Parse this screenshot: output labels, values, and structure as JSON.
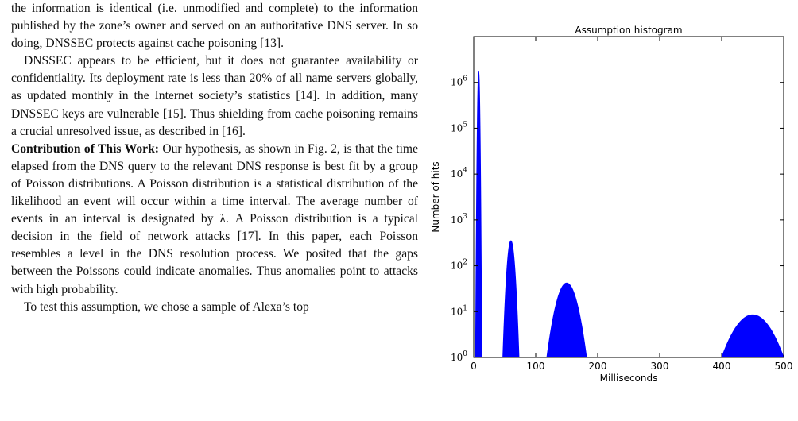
{
  "paper": {
    "paragraphs": [
      {
        "style": "plain",
        "lead": "",
        "text": "the information is identical (i.e. unmodified and complete) to the information published by the zone’s owner and served on an authoritative DNS server. In so doing, DNSSEC protects against cache poisoning [13]."
      },
      {
        "style": "indent",
        "lead": "",
        "text": "DNSSEC appears to be efficient, but it does not guarantee availability or confidentiality. Its deployment rate is less than 20% of all name servers globally, as updated monthly in the Internet society’s statistics [14]. In addition, many DNSSEC keys are vulnerable [15]. Thus shielding from cache poisoning remains a crucial unresolved issue, as described in [16]."
      },
      {
        "style": "plain",
        "lead": "Contribution of This Work:",
        "text": " Our hypothesis, as shown in Fig. 2, is that the time elapsed from the DNS query to the relevant DNS response is best fit by a group of Poisson distributions. A Poisson distribution is a statistical distribution of the likelihood an event will occur within a time interval. The average number of events in an interval is designated by λ. A Poisson distribution is a typical decision in the field of network attacks [17]. In this paper, each Poisson resembles a level in the DNS resolution process. We posited that the gaps between the Poissons could indicate anomalies. Thus anomalies point to attacks with high probability."
      },
      {
        "style": "indent",
        "lead": "",
        "text": "To test this assumption, we chose a sample of Alexa’s top"
      }
    ]
  },
  "chart_data": {
    "type": "area",
    "title": "Assumption histogram",
    "xlabel": "Milliseconds",
    "ylabel": "Number of hits",
    "xlim": [
      0,
      500
    ],
    "ylim_log10": [
      0,
      7
    ],
    "y_scale": "log",
    "grid": false,
    "color": "#0000ff",
    "x_ticks": [
      0,
      100,
      200,
      300,
      400,
      500
    ],
    "x_tick_labels": [
      "0",
      "100",
      "200",
      "300",
      "400",
      "500"
    ],
    "y_tick_exponents": [
      0,
      1,
      2,
      3,
      4,
      5,
      6
    ],
    "y_tick_base": "10",
    "peaks": [
      {
        "center": 8,
        "half_width": 5,
        "peak_value": 1700000
      },
      {
        "center": 60,
        "half_width": 13,
        "peak_value": 350
      },
      {
        "center": 150,
        "half_width": 32,
        "peak_value": 42
      },
      {
        "center": 450,
        "half_width": 50,
        "peak_value": 8.5
      }
    ]
  }
}
